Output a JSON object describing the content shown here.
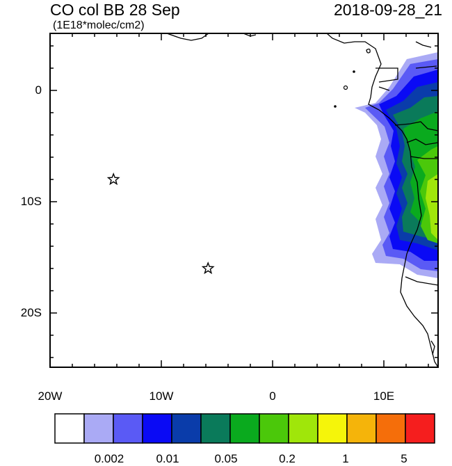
{
  "title": {
    "left": "CO col BB 28 Sep",
    "right": "2018-09-28_21",
    "units": "(1E18*molec/cm2)"
  },
  "axes": {
    "x_ticks": [
      "20W",
      "10W",
      "0",
      "10E"
    ],
    "y_ticks": [
      "0",
      "10S",
      "20S"
    ]
  },
  "colorbar": {
    "colors": [
      "#ffffff",
      "#aaaaf5",
      "#5a5af5",
      "#0a0af5",
      "#0a3caa",
      "#0a7a5a",
      "#0aaa1e",
      "#4bc80a",
      "#a0e60a",
      "#f5f50a",
      "#f5b40a",
      "#f56e0a",
      "#f51e1e"
    ],
    "labels": [
      "0.002",
      "0.01",
      "0.05",
      "0.2",
      "1",
      "5"
    ]
  },
  "markers": [
    {
      "type": "star",
      "lon": -14.3,
      "lat": -8.0
    },
    {
      "type": "star",
      "lon": -5.8,
      "lat": -16.0
    }
  ]
}
